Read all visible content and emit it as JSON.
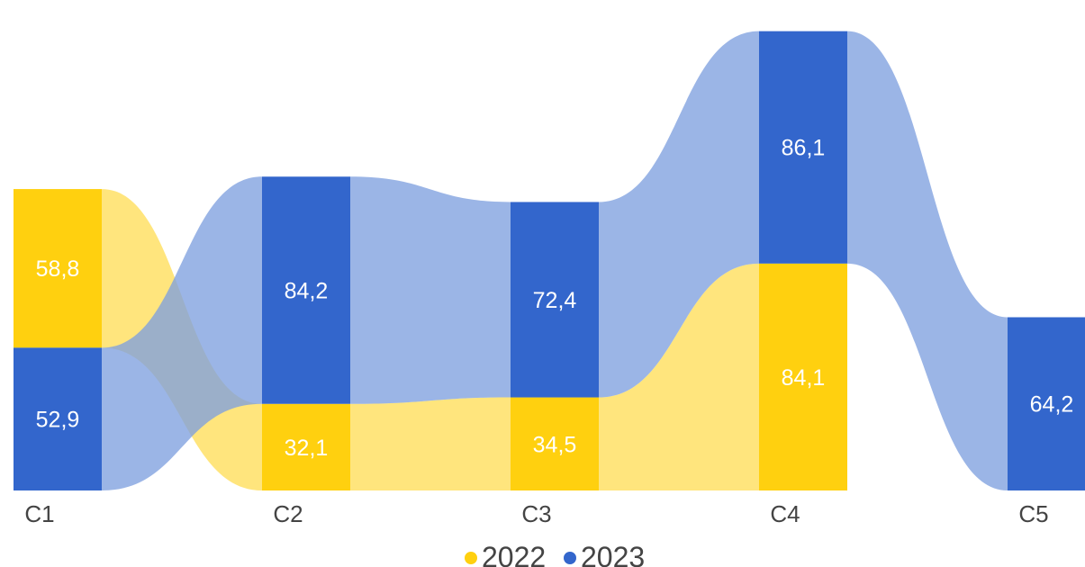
{
  "chart_data": {
    "type": "bar",
    "style": "ribbon-stacked",
    "title": "",
    "xlabel": "",
    "ylabel": "",
    "categories": [
      "C1",
      "C2",
      "C3",
      "C4",
      "C5"
    ],
    "series": [
      {
        "name": "2022",
        "color": "#FFD00F",
        "ribbon_color": "#FFDE59",
        "values": [
          58.8,
          32.1,
          34.5,
          84.1,
          0
        ]
      },
      {
        "name": "2023",
        "color": "#3366CC",
        "ribbon_color": "#7FA0DF",
        "values": [
          52.9,
          84.2,
          72.4,
          86.1,
          64.2
        ]
      }
    ],
    "data_labels": [
      {
        "category": "C1",
        "series": "2022",
        "text": "58,8"
      },
      {
        "category": "C1",
        "series": "2023",
        "text": "52,9"
      },
      {
        "category": "C2",
        "series": "2022",
        "text": "32,1"
      },
      {
        "category": "C2",
        "series": "2023",
        "text": "84,2"
      },
      {
        "category": "C3",
        "series": "2022",
        "text": "34,5"
      },
      {
        "category": "C3",
        "series": "2023",
        "text": "72,4"
      },
      {
        "category": "C4",
        "series": "2022",
        "text": "84,1"
      },
      {
        "category": "C4",
        "series": "2023",
        "text": "86,1"
      },
      {
        "category": "C5",
        "series": "2023",
        "text": "64,2"
      }
    ],
    "ribbon_order": [
      [
        "2022",
        "2023"
      ],
      [
        "2023",
        "2022"
      ],
      [
        "2023",
        "2022"
      ],
      [
        "2023",
        "2022"
      ],
      [
        "2023"
      ]
    ],
    "legend": {
      "position": "bottom",
      "items": [
        {
          "label": "2022",
          "color": "#FFD00F"
        },
        {
          "label": "2023",
          "color": "#3366CC"
        }
      ]
    },
    "grid": false
  }
}
